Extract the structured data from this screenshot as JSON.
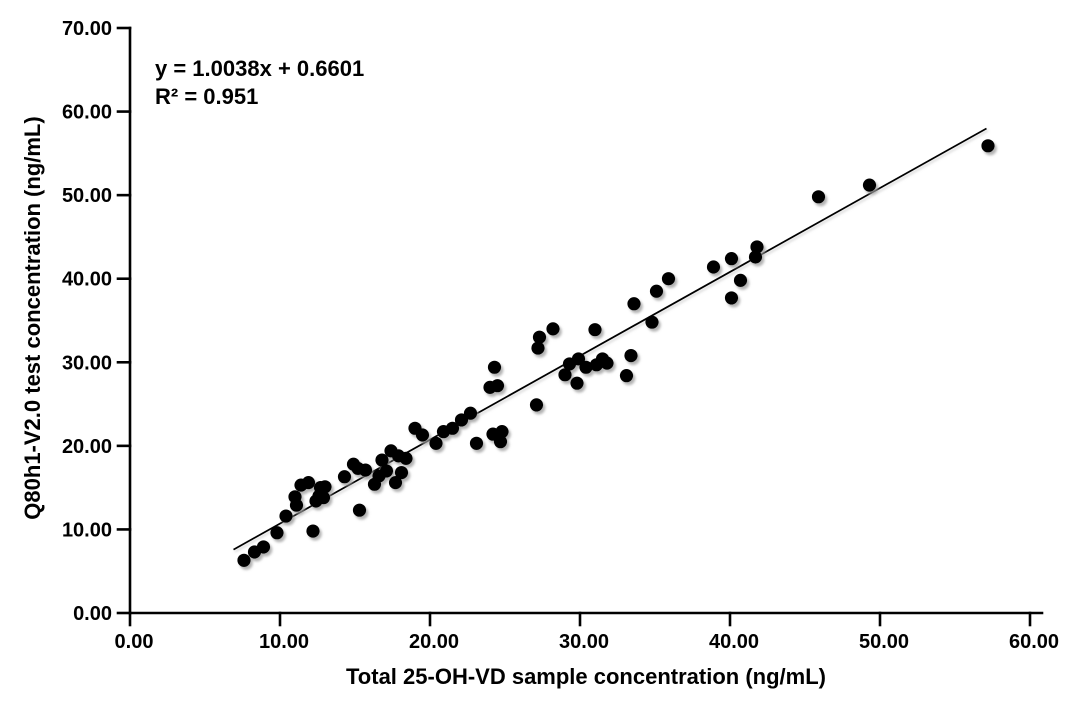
{
  "chart_data": {
    "type": "scatter",
    "title": "",
    "xlabel": "Total 25-OH-VD  sample concentration (ng/mL)",
    "ylabel": "Q80h1-V2.0 test concentration (ng/mL)",
    "xlim": [
      0,
      60
    ],
    "ylim": [
      0,
      70
    ],
    "x_ticks": [
      0,
      10,
      20,
      30,
      40,
      50,
      60
    ],
    "y_ticks": [
      0,
      10,
      20,
      30,
      40,
      50,
      60,
      70
    ],
    "tick_decimals": 2,
    "grid": false,
    "legend": "none",
    "annotation": {
      "equation": "y = 1.0038x + 0.6601",
      "r_squared": "R² = 0.951"
    },
    "trendline": {
      "slope": 1.0038,
      "intercept": 0.6601,
      "x_start": 6.9,
      "x_end": 57.1
    },
    "colors": {
      "point": "#000000",
      "line": "#000000",
      "axis": "#000000",
      "shadow": "#9a9a9a",
      "background": "#ffffff"
    },
    "point_radius": 6.6,
    "points": [
      [
        7.6,
        6.3
      ],
      [
        8.3,
        7.3
      ],
      [
        8.9,
        7.9
      ],
      [
        9.8,
        9.6
      ],
      [
        10.4,
        11.6
      ],
      [
        11.0,
        13.9
      ],
      [
        11.1,
        12.9
      ],
      [
        11.4,
        15.3
      ],
      [
        11.9,
        15.6
      ],
      [
        12.2,
        9.8
      ],
      [
        12.4,
        13.4
      ],
      [
        12.6,
        14.0
      ],
      [
        12.7,
        15.0
      ],
      [
        13.0,
        15.1
      ],
      [
        12.9,
        13.8
      ],
      [
        14.3,
        16.3
      ],
      [
        14.9,
        17.8
      ],
      [
        15.2,
        17.3
      ],
      [
        15.7,
        17.1
      ],
      [
        15.3,
        12.3
      ],
      [
        16.3,
        15.4
      ],
      [
        16.6,
        16.4
      ],
      [
        16.8,
        18.3
      ],
      [
        17.1,
        17.0
      ],
      [
        17.4,
        19.4
      ],
      [
        17.9,
        18.8
      ],
      [
        18.4,
        18.5
      ],
      [
        17.7,
        15.6
      ],
      [
        18.1,
        16.8
      ],
      [
        19.0,
        22.1
      ],
      [
        19.5,
        21.3
      ],
      [
        20.4,
        20.3
      ],
      [
        20.9,
        21.7
      ],
      [
        21.5,
        22.1
      ],
      [
        22.1,
        23.1
      ],
      [
        22.7,
        23.9
      ],
      [
        23.1,
        20.3
      ],
      [
        24.2,
        21.4
      ],
      [
        24.8,
        21.7
      ],
      [
        24.7,
        20.5
      ],
      [
        24.0,
        27.0
      ],
      [
        24.5,
        27.2
      ],
      [
        24.3,
        29.4
      ],
      [
        27.1,
        24.9
      ],
      [
        27.2,
        31.7
      ],
      [
        27.3,
        33.0
      ],
      [
        28.2,
        34.0
      ],
      [
        29.0,
        28.5
      ],
      [
        29.3,
        29.8
      ],
      [
        29.8,
        27.5
      ],
      [
        29.9,
        30.4
      ],
      [
        30.4,
        29.4
      ],
      [
        31.0,
        33.9
      ],
      [
        31.1,
        29.7
      ],
      [
        31.5,
        30.4
      ],
      [
        31.8,
        29.9
      ],
      [
        33.1,
        28.4
      ],
      [
        33.4,
        30.8
      ],
      [
        33.6,
        37.0
      ],
      [
        34.8,
        34.8
      ],
      [
        35.1,
        38.5
      ],
      [
        35.9,
        40.0
      ],
      [
        38.9,
        41.4
      ],
      [
        40.1,
        37.7
      ],
      [
        40.1,
        42.4
      ],
      [
        40.7,
        39.8
      ],
      [
        41.7,
        42.6
      ],
      [
        41.8,
        43.8
      ],
      [
        45.9,
        49.8
      ],
      [
        49.3,
        51.2
      ],
      [
        57.2,
        55.9
      ]
    ]
  }
}
